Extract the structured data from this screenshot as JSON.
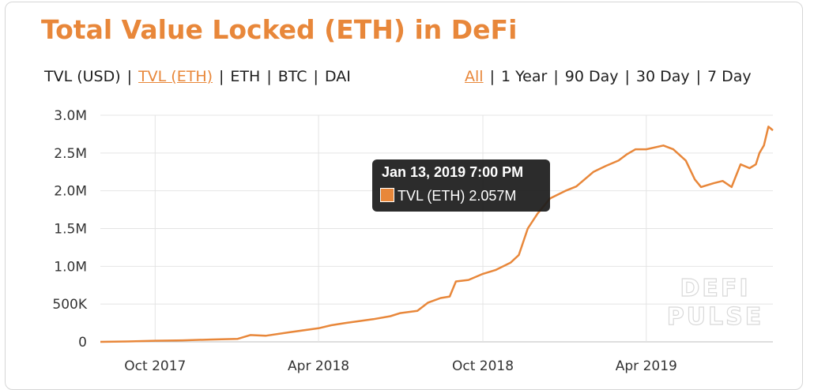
{
  "colors": {
    "accent": "#e8873a",
    "line": "#e8873a",
    "grid": "#e4e4e4",
    "tooltip_bg": "#1c1c1c"
  },
  "header": {
    "title": "Total Value Locked (ETH) in DeFi",
    "currency_tabs": [
      {
        "label": "TVL (USD)",
        "active": false
      },
      {
        "label": "TVL (ETH)",
        "active": true
      },
      {
        "label": "ETH",
        "active": false
      },
      {
        "label": "BTC",
        "active": false
      },
      {
        "label": "DAI",
        "active": false
      }
    ],
    "range_tabs": [
      {
        "label": "All",
        "active": true
      },
      {
        "label": "1 Year",
        "active": false
      },
      {
        "label": "90 Day",
        "active": false
      },
      {
        "label": "30 Day",
        "active": false
      },
      {
        "label": "7 Day",
        "active": false
      }
    ]
  },
  "tooltip": {
    "title": "Jan 13, 2019 7:00 PM",
    "series_value": "TVL (ETH) 2.057M"
  },
  "watermark": {
    "line1": "DEFI",
    "line2": "PULSE"
  },
  "chart_data": {
    "type": "line",
    "title": "Total Value Locked (ETH) in DeFi",
    "xlabel": "",
    "ylabel": "",
    "x_ticks": [
      "2017-10-01",
      "2018-04-01",
      "2018-10-01",
      "2019-04-01"
    ],
    "x_tick_labels": [
      "Oct 2017",
      "Apr 2018",
      "Oct 2018",
      "Apr 2019"
    ],
    "xlim": [
      "2017-08-01",
      "2019-08-20"
    ],
    "y_ticks": [
      0,
      500000,
      1000000,
      1500000,
      2000000,
      2500000,
      3000000
    ],
    "y_tick_labels": [
      "0",
      "500K",
      "1.0M",
      "1.5M",
      "2.0M",
      "2.5M",
      "3.0M"
    ],
    "ylim": [
      0,
      3000000
    ],
    "grid": true,
    "legend": "none",
    "series": [
      {
        "values": [
          [
            "2017-08-01",
            0
          ],
          [
            "2017-09-01",
            5000
          ],
          [
            "2017-10-01",
            15000
          ],
          [
            "2017-11-01",
            20000
          ],
          [
            "2017-12-01",
            30000
          ],
          [
            "2018-01-01",
            40000
          ],
          [
            "2018-01-15",
            90000
          ],
          [
            "2018-02-01",
            80000
          ],
          [
            "2018-03-01",
            130000
          ],
          [
            "2018-04-01",
            180000
          ],
          [
            "2018-04-15",
            220000
          ],
          [
            "2018-05-01",
            250000
          ],
          [
            "2018-06-01",
            300000
          ],
          [
            "2018-06-20",
            340000
          ],
          [
            "2018-07-01",
            380000
          ],
          [
            "2018-07-20",
            410000
          ],
          [
            "2018-08-01",
            520000
          ],
          [
            "2018-08-15",
            580000
          ],
          [
            "2018-08-25",
            600000
          ],
          [
            "2018-09-01",
            800000
          ],
          [
            "2018-09-15",
            820000
          ],
          [
            "2018-10-01",
            900000
          ],
          [
            "2018-10-15",
            950000
          ],
          [
            "2018-11-01",
            1050000
          ],
          [
            "2018-11-10",
            1150000
          ],
          [
            "2018-11-20",
            1500000
          ],
          [
            "2018-12-01",
            1700000
          ],
          [
            "2018-12-15",
            1900000
          ],
          [
            "2019-01-01",
            2000000
          ],
          [
            "2019-01-13",
            2057000
          ],
          [
            "2019-02-01",
            2250000
          ],
          [
            "2019-02-15",
            2330000
          ],
          [
            "2019-03-01",
            2400000
          ],
          [
            "2019-03-10",
            2480000
          ],
          [
            "2019-03-20",
            2550000
          ],
          [
            "2019-04-01",
            2550000
          ],
          [
            "2019-04-20",
            2600000
          ],
          [
            "2019-05-01",
            2550000
          ],
          [
            "2019-05-15",
            2400000
          ],
          [
            "2019-05-25",
            2150000
          ],
          [
            "2019-06-01",
            2050000
          ],
          [
            "2019-06-15",
            2100000
          ],
          [
            "2019-06-25",
            2130000
          ],
          [
            "2019-07-05",
            2050000
          ],
          [
            "2019-07-10",
            2200000
          ],
          [
            "2019-07-15",
            2350000
          ],
          [
            "2019-07-25",
            2300000
          ],
          [
            "2019-08-01",
            2350000
          ],
          [
            "2019-08-05",
            2500000
          ],
          [
            "2019-08-10",
            2600000
          ],
          [
            "2019-08-15",
            2850000
          ],
          [
            "2019-08-20",
            2800000
          ]
        ]
      }
    ]
  }
}
